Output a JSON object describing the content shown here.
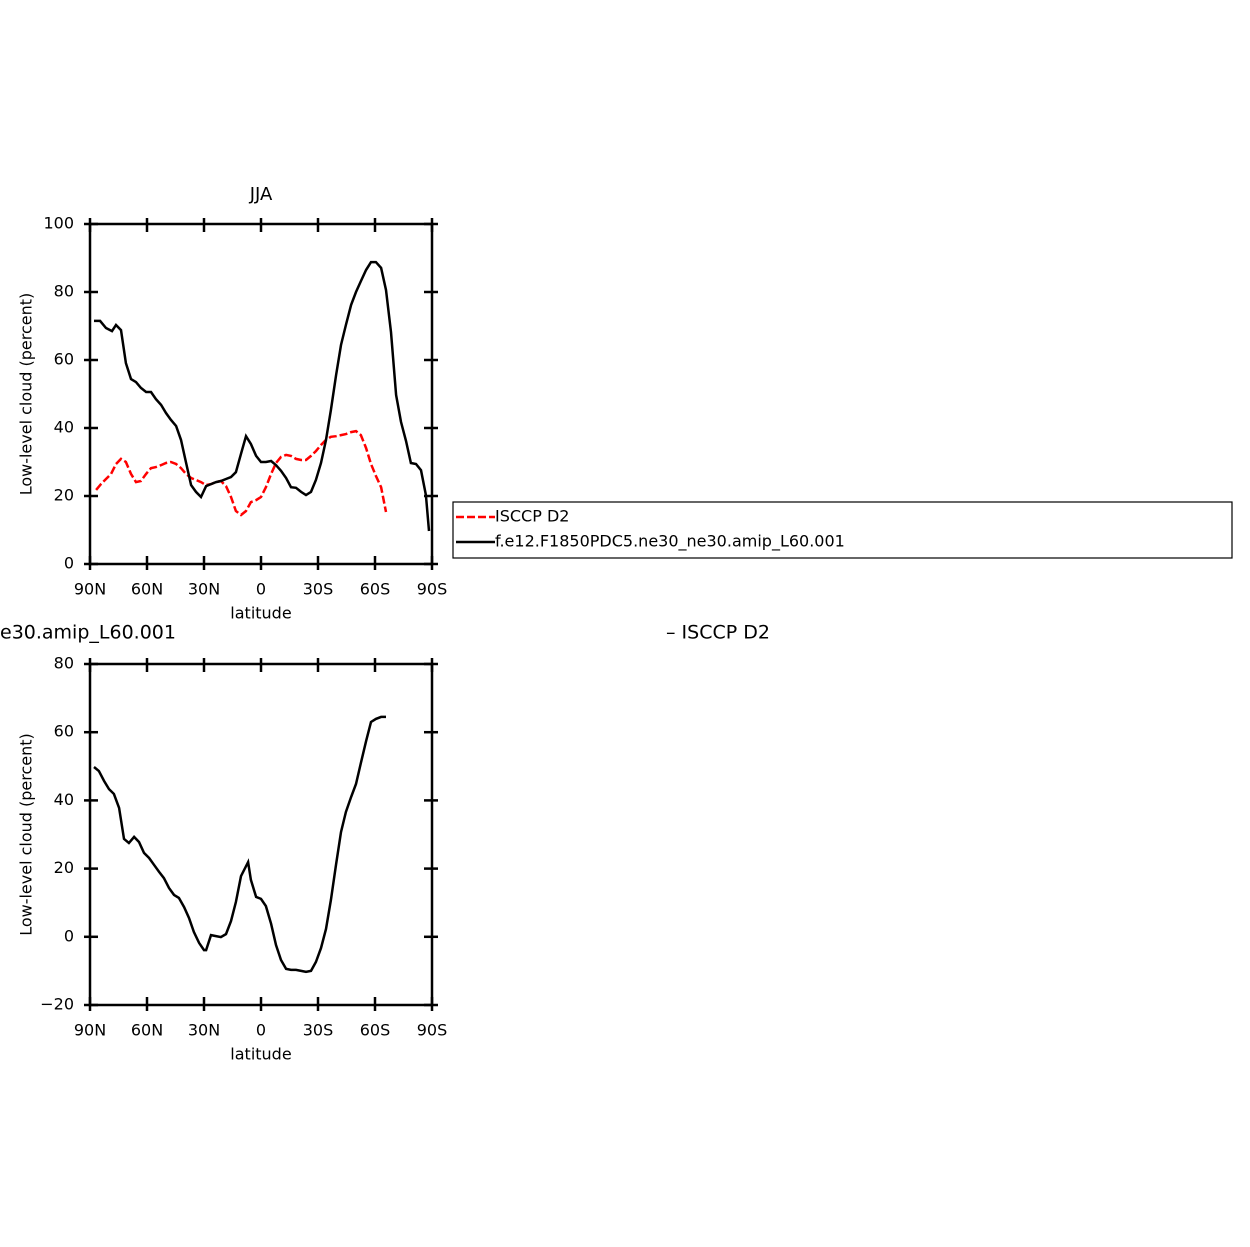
{
  "chart_data": [
    {
      "type": "line",
      "title": "JJA",
      "xlabel": "latitude",
      "ylabel": "Low-level cloud (percent)",
      "xlim": [
        90,
        -90
      ],
      "ylim": [
        0,
        100
      ],
      "xticks": [
        {
          "value": 90,
          "label": "90N"
        },
        {
          "value": 60,
          "label": "60N"
        },
        {
          "value": 30,
          "label": "30N"
        },
        0,
        {
          "value": -30,
          "label": "30S"
        },
        {
          "value": -60,
          "label": "60S"
        },
        {
          "value": -90,
          "label": "90S"
        }
      ],
      "yticks": [
        0,
        20,
        40,
        60,
        80,
        100
      ],
      "legend": "right",
      "series": [
        {
          "name": "ISCCP D2",
          "color": "#ff0000",
          "dashed": true,
          "x": [
            86.8,
            84.2,
            81.6,
            78.9,
            76.3,
            73.7,
            71.1,
            68.4,
            65.8,
            63.2,
            60.5,
            57.9,
            55.3,
            52.6,
            50,
            47.4,
            44.7,
            42.1,
            39.5,
            36.8,
            34.2,
            31.6,
            28.9,
            26.3,
            23.7,
            21.1,
            18.4,
            15.8,
            13.2,
            10.5,
            7.9,
            5.3,
            2.6,
            0,
            -2.6,
            -5.3,
            -7.9,
            -10.5,
            -13.2,
            -15.8,
            -18.4,
            -21.1,
            -23.7,
            -26.3,
            -28.9,
            -31.6,
            -34.2,
            -36.8,
            -39.5,
            -42.1,
            -44.7,
            -47.4,
            -50,
            -52.6,
            -55.3,
            -57.9,
            -60.5,
            -63.2,
            -65.8
          ],
          "values": [
            21.8,
            23.5,
            25,
            26.5,
            29.4,
            30.9,
            30,
            26.5,
            24.1,
            24.4,
            26.5,
            28.2,
            28.5,
            29.1,
            29.7,
            30,
            29.4,
            28.2,
            26.5,
            25.3,
            24.7,
            24.1,
            23.2,
            23.5,
            24.1,
            24.4,
            22.9,
            19.7,
            15.6,
            14.4,
            15.6,
            18.2,
            18.8,
            19.7,
            22.6,
            26.5,
            29.7,
            31.5,
            32.1,
            31.8,
            30.9,
            30.6,
            30.6,
            31.8,
            33.2,
            35,
            36.5,
            37.4,
            37.6,
            37.9,
            38.2,
            38.8,
            39.1,
            37.9,
            34.1,
            29.4,
            25.9,
            22.6,
            15.3
          ]
        },
        {
          "name": "f.e12.F1850PDC5.ne30_ne30.amip_L60.001",
          "color": "#000000",
          "dashed": false,
          "x": [
            87.9,
            84.7,
            81.6,
            78.4,
            76.3,
            73.7,
            71.1,
            68.4,
            65.8,
            63.2,
            60.5,
            57.9,
            55.3,
            52.6,
            50,
            47.4,
            44.7,
            42.1,
            39.5,
            36.8,
            34.2,
            31.6,
            28.9,
            26.3,
            23.7,
            21.1,
            18.4,
            15.8,
            13.2,
            10.5,
            7.9,
            5.3,
            2.6,
            0,
            -2.6,
            -5.3,
            -7.9,
            -10.5,
            -13.2,
            -15.8,
            -18.4,
            -21.1,
            -23.7,
            -26.3,
            -28.9,
            -31.6,
            -34.2,
            -36.8,
            -39.5,
            -42.1,
            -44.7,
            -47.4,
            -50,
            -52.6,
            -55.3,
            -57.9,
            -60.5,
            -63.2,
            -65.8,
            -68.4,
            -71.1,
            -73.7,
            -76.3,
            -78.9,
            -81.6,
            -84.2,
            -86.8,
            -88.4
          ],
          "values": [
            71.5,
            71.5,
            69.4,
            68.5,
            70.3,
            68.8,
            59.1,
            54.4,
            53.5,
            51.8,
            50.6,
            50.6,
            48.5,
            46.8,
            44.4,
            42.4,
            40.6,
            36.5,
            30,
            23.2,
            21.2,
            19.7,
            22.9,
            23.5,
            24.1,
            24.4,
            25,
            25.6,
            27,
            32.4,
            37.6,
            35.3,
            31.8,
            30,
            30,
            30.3,
            29.1,
            27.4,
            25.3,
            22.6,
            22.4,
            21.2,
            20.3,
            21.2,
            24.7,
            29.7,
            36.5,
            45.3,
            55.6,
            64.4,
            70.3,
            76.2,
            80,
            83.2,
            86.5,
            88.8,
            88.8,
            87.1,
            80.6,
            68.2,
            49.7,
            41.8,
            36.2,
            29.7,
            29.4,
            27.6,
            20.3,
            9.7
          ]
        }
      ]
    },
    {
      "type": "line",
      "left_title": "e30.amip_L60.001",
      "right_title": "– ISCCP D2",
      "xlabel": "latitude",
      "ylabel": "Low-level cloud (percent)",
      "xlim": [
        90,
        -90
      ],
      "ylim": [
        -20,
        80
      ],
      "xticks": [
        {
          "value": 90,
          "label": "90N"
        },
        {
          "value": 60,
          "label": "60N"
        },
        {
          "value": 30,
          "label": "30N"
        },
        0,
        {
          "value": -30,
          "label": "30S"
        },
        {
          "value": -60,
          "label": "60S"
        },
        {
          "value": -90,
          "label": "90S"
        }
      ],
      "yticks": [
        {
          "value": -20,
          "label": "−20"
        },
        0,
        20,
        40,
        60,
        80
      ],
      "series": [
        {
          "color": "#000000",
          "dashed": false,
          "x": [
            87.9,
            85.3,
            82.6,
            80,
            77.4,
            74.7,
            72.1,
            69.5,
            66.8,
            64.2,
            61.6,
            58.9,
            56.3,
            53.7,
            51.1,
            48.4,
            45.8,
            43.2,
            40.5,
            37.9,
            35.3,
            32.6,
            30,
            28.9,
            26.3,
            23.7,
            21.1,
            18.4,
            15.8,
            13.2,
            10.5,
            6.8,
            5.3,
            2.6,
            0,
            -2.6,
            -5.3,
            -7.9,
            -10.5,
            -13.2,
            -15.8,
            -18.4,
            -21.1,
            -23.7,
            -26.3,
            -28.9,
            -31.6,
            -34.2,
            -36.8,
            -39.5,
            -42.1,
            -44.7,
            -47.4,
            -50,
            -52.6,
            -55.3,
            -57.9,
            -60.5,
            -63.2,
            -65.8
          ],
          "values": [
            49.8,
            48.6,
            45.7,
            43.3,
            41.9,
            37.8,
            28.7,
            27.5,
            29.3,
            27.8,
            24.6,
            23.1,
            21.1,
            19.1,
            17.2,
            14.3,
            12.3,
            11.4,
            8.7,
            5.5,
            1.4,
            -1.8,
            -3.9,
            -3.9,
            0.5,
            0.2,
            -0.1,
            0.8,
            4.6,
            10.2,
            17.8,
            21.9,
            16.7,
            11.7,
            11.1,
            9,
            3.8,
            -2.4,
            -6.8,
            -9.4,
            -9.7,
            -9.7,
            -10,
            -10.3,
            -10,
            -7.4,
            -3.3,
            2.3,
            10.8,
            21.3,
            30.7,
            36.6,
            41,
            44.8,
            51,
            57.4,
            63,
            63.9,
            64.5,
            64.5
          ]
        }
      ]
    }
  ]
}
